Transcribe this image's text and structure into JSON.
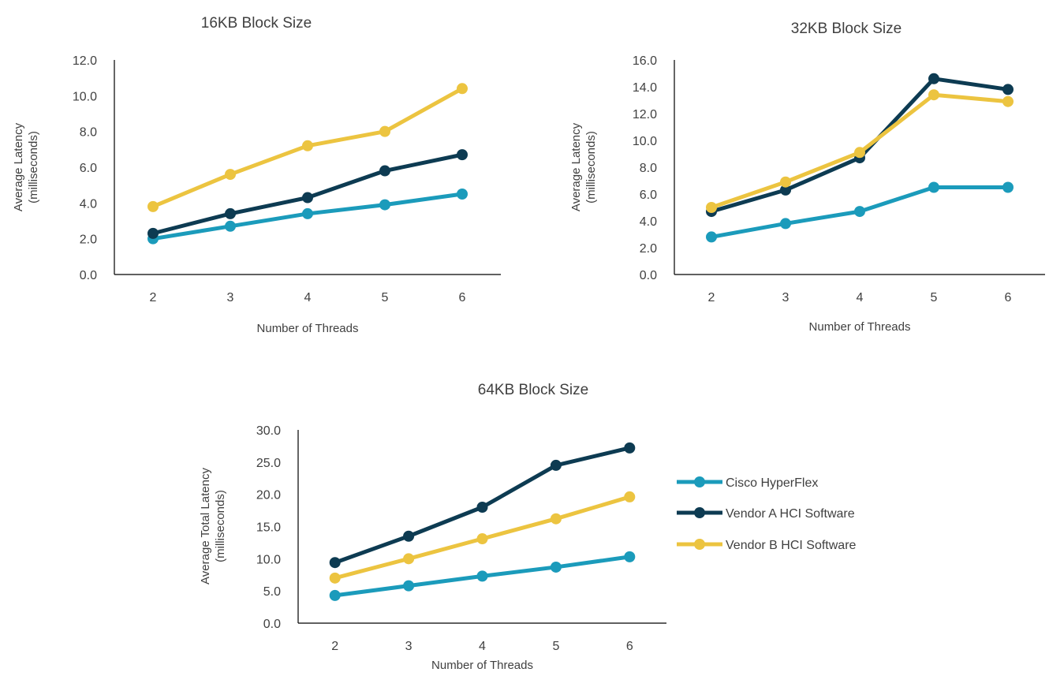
{
  "colors": {
    "series": [
      "#1b9bbb",
      "#0d3b52",
      "#ecc440"
    ],
    "axis": "#000000",
    "text": "#404040"
  },
  "chart_data": [
    {
      "type": "line",
      "title": "16KB Block Size",
      "xlabel": "Number of  Threads",
      "ylabel_lines": [
        "Average Latency",
        "(milliseconds)"
      ],
      "ylim": [
        0,
        12
      ],
      "ystep": 2,
      "grid": false,
      "categories": [
        "2",
        "3",
        "4",
        "5",
        "6"
      ],
      "series": [
        {
          "name": "Cisco HyperFlex",
          "values": [
            2.0,
            2.7,
            3.4,
            3.9,
            4.5
          ]
        },
        {
          "name": "Vendor A HCI Software",
          "values": [
            2.3,
            3.4,
            4.3,
            5.8,
            6.7
          ]
        },
        {
          "name": "Vendor B HCI Software",
          "values": [
            3.8,
            5.6,
            7.2,
            8.0,
            10.4
          ]
        }
      ]
    },
    {
      "type": "line",
      "title": "32KB Block Size",
      "xlabel": "Number of  Threads",
      "ylabel_lines": [
        "Average Latency",
        "(milliseconds)"
      ],
      "ylim": [
        0,
        16
      ],
      "ystep": 2,
      "grid": false,
      "categories": [
        "2",
        "3",
        "4",
        "5",
        "6"
      ],
      "series": [
        {
          "name": "Cisco HyperFlex",
          "values": [
            2.8,
            3.8,
            4.7,
            6.5,
            6.5
          ]
        },
        {
          "name": "Vendor A HCI Software",
          "values": [
            4.7,
            6.3,
            8.7,
            14.6,
            13.8
          ]
        },
        {
          "name": "Vendor B HCI Software",
          "values": [
            5.0,
            6.9,
            9.1,
            13.4,
            12.9
          ]
        }
      ]
    },
    {
      "type": "line",
      "title": "64KB Block Size",
      "xlabel": "Number of  Threads",
      "ylabel_lines": [
        "Average Total Latency",
        "(milliseconds)"
      ],
      "ylim": [
        0,
        30
      ],
      "ystep": 5,
      "grid": false,
      "legend_position": "right",
      "categories": [
        "2",
        "3",
        "4",
        "5",
        "6"
      ],
      "series": [
        {
          "name": "Cisco HyperFlex",
          "values": [
            4.3,
            5.8,
            7.3,
            8.7,
            10.3
          ]
        },
        {
          "name": "Vendor A HCI Software",
          "values": [
            9.4,
            13.5,
            18.0,
            24.5,
            27.2
          ]
        },
        {
          "name": "Vendor B HCI Software",
          "values": [
            7.0,
            10.0,
            13.1,
            16.2,
            19.6
          ]
        }
      ]
    }
  ]
}
